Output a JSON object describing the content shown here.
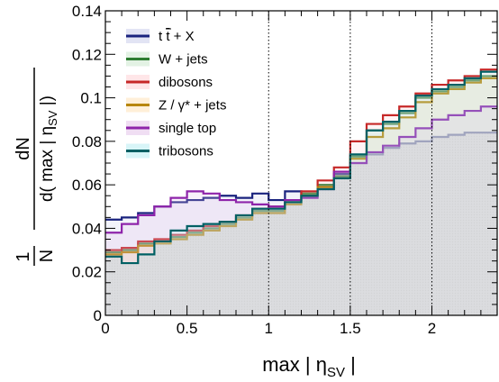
{
  "chart_data": {
    "type": "line",
    "subtype": "stacked-outline-histogram",
    "xlabel_main": "max | η",
    "xlabel_sub": "SV",
    "xlabel_end": " |",
    "ylabel_frac_num": "1",
    "ylabel_frac_den": "N",
    "ylabel_num": "dN",
    "ylabel_den_main": "d( max | η",
    "ylabel_den_sub": "SV",
    "ylabel_den_end": " |)",
    "xlim": [
      0,
      2.4
    ],
    "ylim": [
      0,
      0.14
    ],
    "x_ticks": [
      0,
      0.5,
      1,
      1.5,
      2
    ],
    "x_tick_labels": [
      "0",
      "0.5",
      "1",
      "1.5",
      "2"
    ],
    "y_ticks": [
      0,
      0.02,
      0.04,
      0.06,
      0.08,
      0.1,
      0.12,
      0.14
    ],
    "y_tick_labels": [
      "0",
      "0.02",
      "0.04",
      "0.06",
      "0.08",
      "0.1",
      "0.12",
      "0.14"
    ],
    "vertical_dotted_lines": [
      1.0,
      1.5,
      2.0
    ],
    "grid": false,
    "legend_position": "top-left",
    "bin_edges": [
      0,
      0.1,
      0.2,
      0.3,
      0.4,
      0.5,
      0.6,
      0.7,
      0.8,
      0.9,
      1.0,
      1.1,
      1.2,
      1.3,
      1.4,
      1.5,
      1.6,
      1.7,
      1.8,
      1.9,
      2.0,
      2.1,
      2.2,
      2.3,
      2.4
    ],
    "series": [
      {
        "name": "t t̄ + X",
        "legend_main": "t ",
        "legend_tbar": "t",
        "legend_rest": " + X",
        "color": "#1a237e",
        "fill": "#c5cae9",
        "values": [
          0.044,
          0.045,
          0.047,
          0.05,
          0.052,
          0.053,
          0.054,
          0.055,
          0.054,
          0.056,
          0.053,
          0.057,
          0.055,
          0.06,
          0.065,
          0.07,
          0.074,
          0.077,
          0.079,
          0.08,
          0.082,
          0.083,
          0.084,
          0.084
        ]
      },
      {
        "name": "W + jets",
        "color": "#2e7d32",
        "fill": "#c8e6c9",
        "values": [
          0.029,
          0.03,
          0.033,
          0.034,
          0.036,
          0.038,
          0.04,
          0.042,
          0.045,
          0.048,
          0.048,
          0.052,
          0.056,
          0.06,
          0.064,
          0.073,
          0.085,
          0.088,
          0.093,
          0.1,
          0.103,
          0.105,
          0.108,
          0.11
        ]
      },
      {
        "name": "dibosons",
        "color": "#c62828",
        "fill": "#ffcdd2",
        "values": [
          0.03,
          0.031,
          0.034,
          0.035,
          0.037,
          0.039,
          0.041,
          0.043,
          0.046,
          0.049,
          0.05,
          0.053,
          0.057,
          0.062,
          0.068,
          0.08,
          0.088,
          0.092,
          0.096,
          0.102,
          0.106,
          0.108,
          0.11,
          0.113
        ]
      },
      {
        "name": "Z / γ* + jets",
        "color": "#b8860b",
        "fill": "#ffe0b2",
        "values": [
          0.028,
          0.029,
          0.032,
          0.033,
          0.035,
          0.037,
          0.039,
          0.041,
          0.044,
          0.047,
          0.047,
          0.051,
          0.055,
          0.059,
          0.063,
          0.072,
          0.082,
          0.086,
          0.091,
          0.098,
          0.102,
          0.104,
          0.107,
          0.109
        ]
      },
      {
        "name": "single top",
        "color": "#8e24aa",
        "fill": "#e1bee7",
        "values": [
          0.038,
          0.042,
          0.046,
          0.05,
          0.054,
          0.057,
          0.056,
          0.053,
          0.052,
          0.051,
          0.05,
          0.053,
          0.054,
          0.058,
          0.066,
          0.07,
          0.075,
          0.078,
          0.082,
          0.086,
          0.09,
          0.092,
          0.094,
          0.096
        ]
      },
      {
        "name": "tribosons",
        "color": "#006064",
        "fill": "#b2ebf2",
        "values": [
          0.027,
          0.024,
          0.028,
          0.034,
          0.039,
          0.041,
          0.042,
          0.043,
          0.046,
          0.049,
          0.049,
          0.052,
          0.055,
          0.058,
          0.063,
          0.074,
          0.085,
          0.089,
          0.094,
          0.101,
          0.104,
          0.106,
          0.109,
          0.112
        ]
      }
    ],
    "shaded_base_color": "#e0e0e0"
  }
}
